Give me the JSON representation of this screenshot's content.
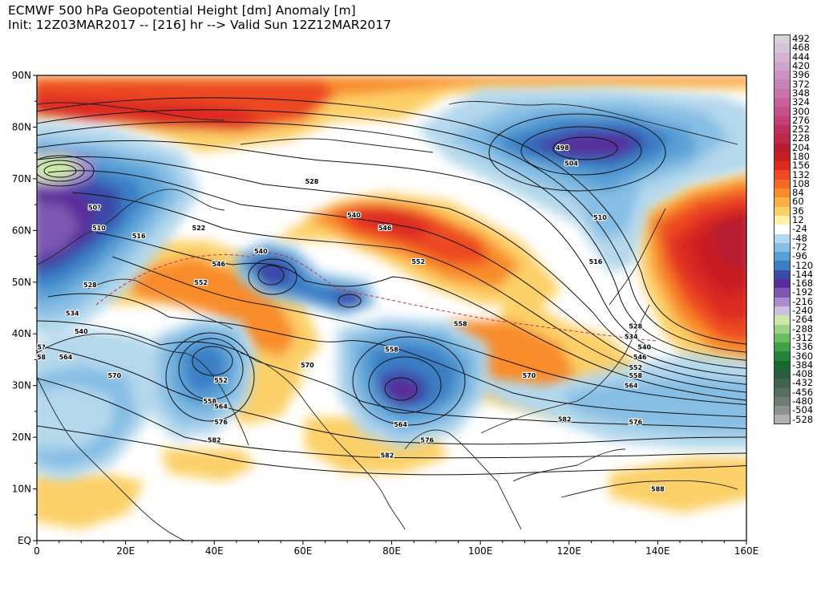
{
  "header": {
    "line1": "ECMWF 500 hPa Geopotential Height [dm] Anomaly [m]",
    "line2": "Init: 12Z03MAR2017 -- [216] hr --> Valid Sun 12Z12MAR2017"
  },
  "axes": {
    "lat_labels": [
      "90N",
      "80N",
      "70N",
      "60N",
      "50N",
      "40N",
      "30N",
      "20N",
      "10N",
      "EQ"
    ],
    "lon_labels": [
      "0",
      "20E",
      "40E",
      "60E",
      "80E",
      "100E",
      "120E",
      "140E",
      "160E"
    ]
  },
  "legend": [
    {
      "label": "492",
      "color": "#d8d0dc"
    },
    {
      "label": "468",
      "color": "#d4c4d8"
    },
    {
      "label": "444",
      "color": "#d2b4d2"
    },
    {
      "label": "420",
      "color": "#cfa4cc"
    },
    {
      "label": "396",
      "color": "#cc92c2"
    },
    {
      "label": "372",
      "color": "#c882b8"
    },
    {
      "label": "348",
      "color": "#c872aa"
    },
    {
      "label": "324",
      "color": "#c8609c"
    },
    {
      "label": "300",
      "color": "#c8508c"
    },
    {
      "label": "276",
      "color": "#c43e78"
    },
    {
      "label": "252",
      "color": "#c0305e"
    },
    {
      "label": "228",
      "color": "#bc2846"
    },
    {
      "label": "204",
      "color": "#b81c30"
    },
    {
      "label": "180",
      "color": "#c81e22"
    },
    {
      "label": "156",
      "color": "#dc2a20"
    },
    {
      "label": "132",
      "color": "#ec4a22"
    },
    {
      "label": "108",
      "color": "#f46a24"
    },
    {
      "label": "84",
      "color": "#f88c2c"
    },
    {
      "label": "60",
      "color": "#fbb044"
    },
    {
      "label": "36",
      "color": "#fcd068"
    },
    {
      "label": "12",
      "color": "#fdf0a8"
    },
    {
      "label": "-24",
      "color": "#ffffff"
    },
    {
      "label": "-48",
      "color": "#b4d8ec"
    },
    {
      "label": "-72",
      "color": "#86bee4"
    },
    {
      "label": "-96",
      "color": "#5aa0d6"
    },
    {
      "label": "-120",
      "color": "#3a7ec4"
    },
    {
      "label": "-144",
      "color": "#3a4aa8"
    },
    {
      "label": "-168",
      "color": "#5a2c9a"
    },
    {
      "label": "-192",
      "color": "#7c58b2"
    },
    {
      "label": "-216",
      "color": "#a88ccc"
    },
    {
      "label": "-240",
      "color": "#ccc0e0"
    },
    {
      "label": "-264",
      "color": "#cde8a8"
    },
    {
      "label": "-288",
      "color": "#9ed484"
    },
    {
      "label": "-312",
      "color": "#6cbc62"
    },
    {
      "label": "-336",
      "color": "#40a048"
    },
    {
      "label": "-360",
      "color": "#22843a"
    },
    {
      "label": "-384",
      "color": "#126a2e"
    },
    {
      "label": "-408",
      "color": "#2a5c3e"
    },
    {
      "label": "-432",
      "color": "#3e6450"
    },
    {
      "label": "-456",
      "color": "#566e62"
    },
    {
      "label": "-480",
      "color": "#6e7c74"
    },
    {
      "label": "-504",
      "color": "#8c928e"
    },
    {
      "label": "-528",
      "color": "#b0b2b0"
    }
  ],
  "contour_labels": [
    {
      "text": "498",
      "lon": 118.5,
      "lat": 76
    },
    {
      "text": "504",
      "lon": 120.5,
      "lat": 73
    },
    {
      "text": "510",
      "lon": 127,
      "lat": 62.5
    },
    {
      "text": "516",
      "lon": 126,
      "lat": 54
    },
    {
      "text": "528",
      "lon": 62,
      "lat": 69.5
    },
    {
      "text": "540",
      "lon": 71.5,
      "lat": 63
    },
    {
      "text": "546",
      "lon": 78.5,
      "lat": 60.5
    },
    {
      "text": "552",
      "lon": 86,
      "lat": 54
    },
    {
      "text": "558",
      "lon": 95.5,
      "lat": 42
    },
    {
      "text": "540",
      "lon": 50.5,
      "lat": 56
    },
    {
      "text": "546",
      "lon": 41,
      "lat": 53.5
    },
    {
      "text": "552",
      "lon": 37,
      "lat": 50
    },
    {
      "text": "522",
      "lon": 36.5,
      "lat": 60.5
    },
    {
      "text": "516",
      "lon": 23,
      "lat": 59
    },
    {
      "text": "510",
      "lon": 14,
      "lat": 60.5
    },
    {
      "text": "50?",
      "lon": 13,
      "lat": 64.5
    },
    {
      "text": "528",
      "lon": 12,
      "lat": 49.5
    },
    {
      "text": "534",
      "lon": 8,
      "lat": 44
    },
    {
      "text": "540",
      "lon": 10,
      "lat": 40.5
    },
    {
      "text": "564",
      "lon": 6.5,
      "lat": 35.5
    },
    {
      "text": "570",
      "lon": 17.5,
      "lat": 32
    },
    {
      "text": "552",
      "lon": 41.5,
      "lat": 31
    },
    {
      "text": "558",
      "lon": 39,
      "lat": 27
    },
    {
      "text": "564",
      "lon": 41.5,
      "lat": 26
    },
    {
      "text": "576",
      "lon": 41.5,
      "lat": 23
    },
    {
      "text": "582",
      "lon": 40,
      "lat": 19.5
    },
    {
      "text": "570",
      "lon": 61,
      "lat": 34
    },
    {
      "text": "558",
      "lon": 80,
      "lat": 37
    },
    {
      "text": "564",
      "lon": 82,
      "lat": 22.5
    },
    {
      "text": "576",
      "lon": 88,
      "lat": 19.5
    },
    {
      "text": "582",
      "lon": 79,
      "lat": 16.5
    },
    {
      "text": "570",
      "lon": 111,
      "lat": 32
    },
    {
      "text": "582",
      "lon": 119,
      "lat": 23.5
    },
    {
      "text": "576",
      "lon": 135,
      "lat": 23
    },
    {
      "text": "588",
      "lon": 140,
      "lat": 10
    },
    {
      "text": "528",
      "lon": 135,
      "lat": 41.5
    },
    {
      "text": "534",
      "lon": 134,
      "lat": 39.5
    },
    {
      "text": "540",
      "lon": 137,
      "lat": 37.5
    },
    {
      "text": "546",
      "lon": 136,
      "lat": 35.5
    },
    {
      "text": "552",
      "lon": 135,
      "lat": 33.5
    },
    {
      "text": "558",
      "lon": 135,
      "lat": 32
    },
    {
      "text": "564",
      "lon": 134,
      "lat": 30
    },
    {
      "text": "5?",
      "lon": 1,
      "lat": 37.5
    },
    {
      "text": "58",
      "lon": 1,
      "lat": 35.5
    }
  ]
}
